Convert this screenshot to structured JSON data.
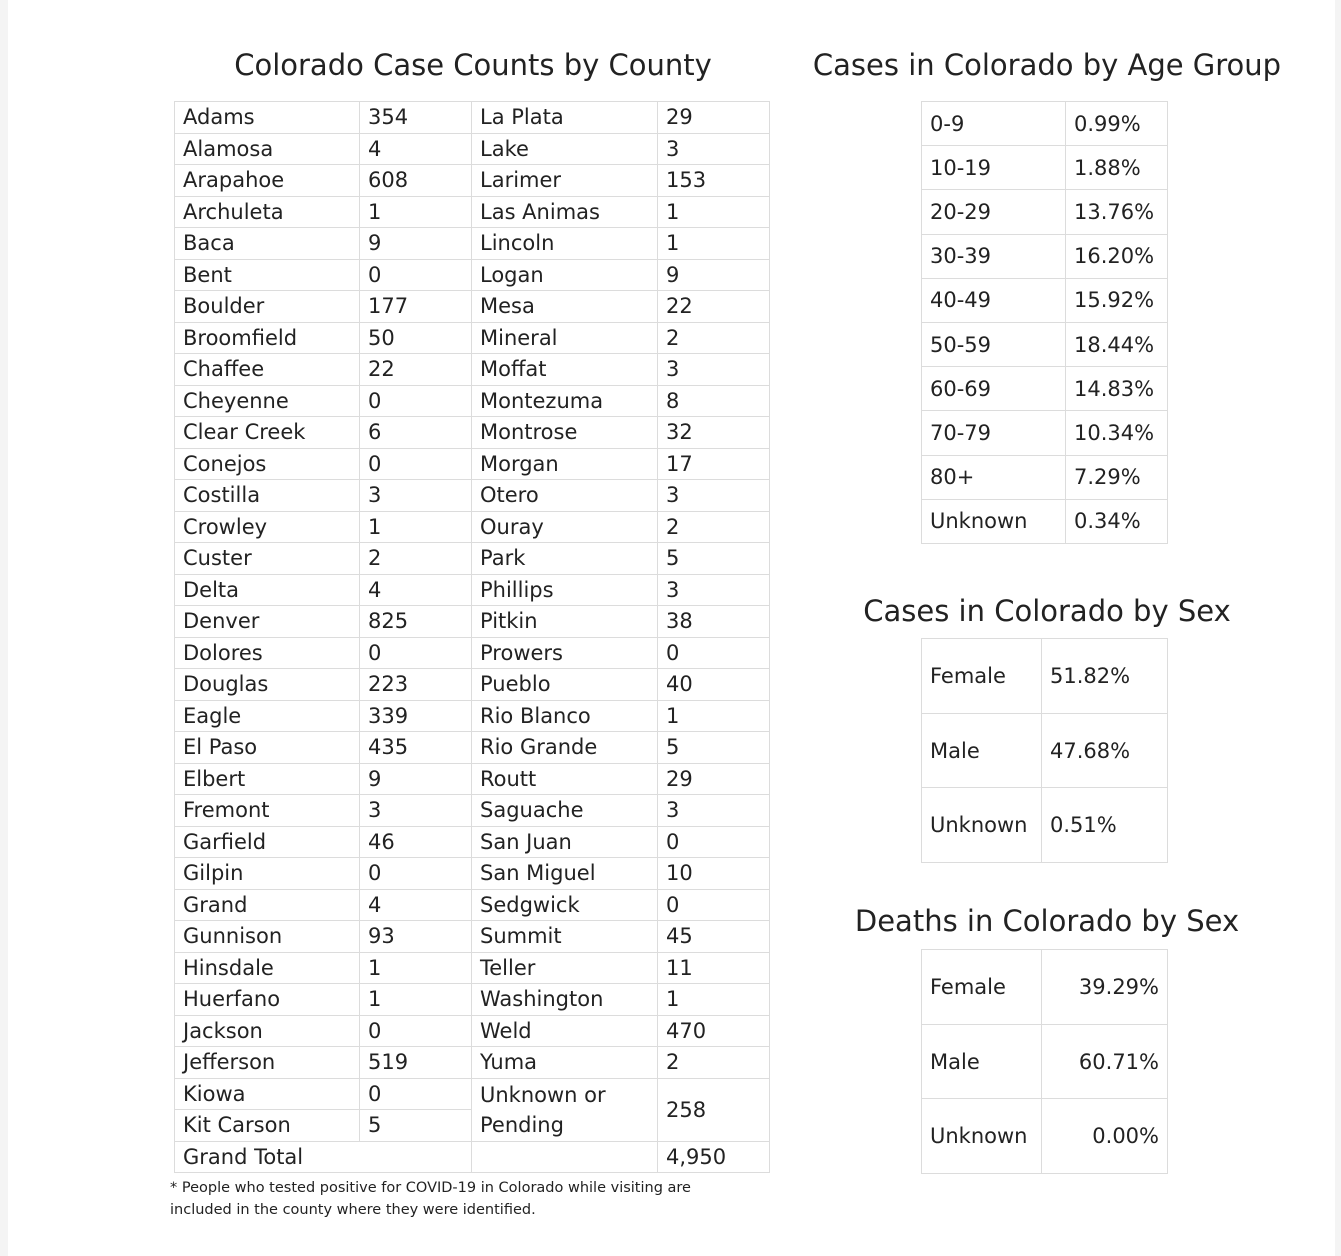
{
  "county": {
    "title": "Colorado Case Counts by County",
    "left": [
      [
        "Adams",
        "354"
      ],
      [
        "Alamosa",
        "4"
      ],
      [
        "Arapahoe",
        "608"
      ],
      [
        "Archuleta",
        "1"
      ],
      [
        "Baca",
        "9"
      ],
      [
        "Bent",
        "0"
      ],
      [
        "Boulder",
        "177"
      ],
      [
        "Broomfield",
        "50"
      ],
      [
        "Chaffee",
        "22"
      ],
      [
        "Cheyenne",
        "0"
      ],
      [
        "Clear Creek",
        "6"
      ],
      [
        "Conejos",
        "0"
      ],
      [
        "Costilla",
        "3"
      ],
      [
        "Crowley",
        "1"
      ],
      [
        "Custer",
        "2"
      ],
      [
        "Delta",
        "4"
      ],
      [
        "Denver",
        "825"
      ],
      [
        "Dolores",
        "0"
      ],
      [
        "Douglas",
        "223"
      ],
      [
        "Eagle",
        "339"
      ],
      [
        "El Paso",
        "435"
      ],
      [
        "Elbert",
        "9"
      ],
      [
        "Fremont",
        "3"
      ],
      [
        "Garfield",
        "46"
      ],
      [
        "Gilpin",
        "0"
      ],
      [
        "Grand",
        "4"
      ],
      [
        "Gunnison",
        "93"
      ],
      [
        "Hinsdale",
        "1"
      ],
      [
        "Huerfano",
        "1"
      ],
      [
        "Jackson",
        "0"
      ],
      [
        "Jefferson",
        "519"
      ],
      [
        "Kiowa",
        "0"
      ],
      [
        "Kit Carson",
        "5"
      ]
    ],
    "right": [
      [
        "La Plata",
        "29"
      ],
      [
        "Lake",
        "3"
      ],
      [
        "Larimer",
        "153"
      ],
      [
        "Las Animas",
        "1"
      ],
      [
        "Lincoln",
        "1"
      ],
      [
        "Logan",
        "9"
      ],
      [
        "Mesa",
        "22"
      ],
      [
        "Mineral",
        "2"
      ],
      [
        "Moffat",
        "3"
      ],
      [
        "Montezuma",
        "8"
      ],
      [
        "Montrose",
        "32"
      ],
      [
        "Morgan",
        "17"
      ],
      [
        "Otero",
        "3"
      ],
      [
        "Ouray",
        "2"
      ],
      [
        "Park",
        "5"
      ],
      [
        "Phillips",
        "3"
      ],
      [
        "Pitkin",
        "38"
      ],
      [
        "Prowers",
        "0"
      ],
      [
        "Pueblo",
        "40"
      ],
      [
        "Rio Blanco",
        "1"
      ],
      [
        "Rio Grande",
        "5"
      ],
      [
        "Routt",
        "29"
      ],
      [
        "Saguache",
        "3"
      ],
      [
        "San Juan",
        "0"
      ],
      [
        "San Miguel",
        "10"
      ],
      [
        "Sedgwick",
        "0"
      ],
      [
        "Summit",
        "45"
      ],
      [
        "Teller",
        "11"
      ],
      [
        "Washington",
        "1"
      ],
      [
        "Weld",
        "470"
      ],
      [
        "Yuma",
        "2"
      ]
    ],
    "unknown": [
      "Unknown or Pending",
      "258"
    ],
    "total": [
      "Grand Total",
      "4,950"
    ],
    "footnote": "* People who tested positive for COVID-19 in Colorado while visiting are included in the county where they were identified."
  },
  "age": {
    "title": "Cases in Colorado by Age Group",
    "rows": [
      [
        "0-9",
        "0.99%"
      ],
      [
        "10-19",
        "1.88%"
      ],
      [
        "20-29",
        "13.76%"
      ],
      [
        "30-39",
        "16.20%"
      ],
      [
        "40-49",
        "15.92%"
      ],
      [
        "50-59",
        "18.44%"
      ],
      [
        "60-69",
        "14.83%"
      ],
      [
        "70-79",
        "10.34%"
      ],
      [
        "80+",
        "7.29%"
      ],
      [
        "Unknown",
        "0.34%"
      ]
    ]
  },
  "sex": {
    "title": "Cases in Colorado by Sex",
    "rows": [
      [
        "Female",
        "51.82%"
      ],
      [
        "Male",
        "47.68%"
      ],
      [
        "Unknown",
        "0.51%"
      ]
    ]
  },
  "deaths": {
    "title": "Deaths in Colorado by Sex",
    "rows": [
      [
        "Female",
        "39.29%"
      ],
      [
        "Male",
        "60.71%"
      ],
      [
        "Unknown",
        "0.00%"
      ]
    ]
  }
}
